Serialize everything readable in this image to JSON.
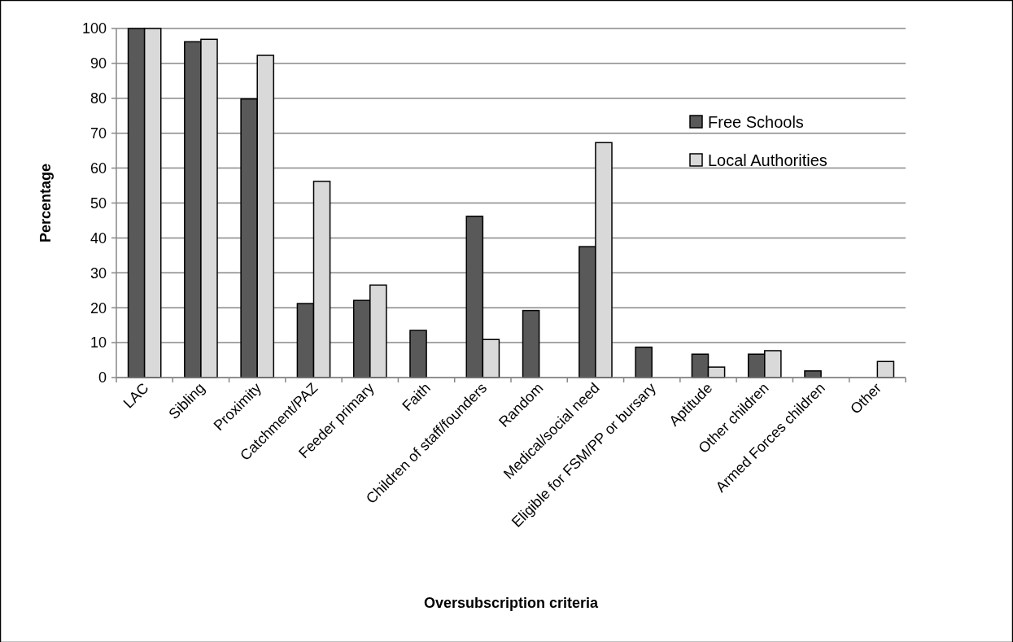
{
  "chart_data": {
    "type": "bar",
    "xlabel": "Oversubscription criteria",
    "ylabel": "Percentage",
    "categories": [
      "LAC",
      "Sibling",
      "Proximity",
      "Catchment/PAZ",
      "Feeder primary",
      "Faith",
      "Children of staff/founders",
      "Random",
      "Medical/social need",
      "Eligible for FSM/PP or bursary",
      "Aptitude",
      "Other children",
      "Armed Forces children",
      "Other"
    ],
    "series": [
      {
        "name": "Free Schools",
        "color": "#595959",
        "values": [
          100,
          96.2,
          79.8,
          21.2,
          22.1,
          13.5,
          46.2,
          19.2,
          37.5,
          8.7,
          6.7,
          6.7,
          1.9,
          0
        ]
      },
      {
        "name": "Local Authorities",
        "color": "#d9d9d9",
        "values": [
          100,
          96.9,
          92.3,
          56.2,
          26.5,
          0,
          10.9,
          0,
          67.3,
          0,
          3.0,
          7.7,
          0,
          4.6
        ]
      }
    ],
    "ylim": [
      0,
      100
    ],
    "yticks": [
      0,
      10,
      20,
      30,
      40,
      50,
      60,
      70,
      80,
      90,
      100
    ],
    "grid": "y",
    "legend": "top right"
  }
}
